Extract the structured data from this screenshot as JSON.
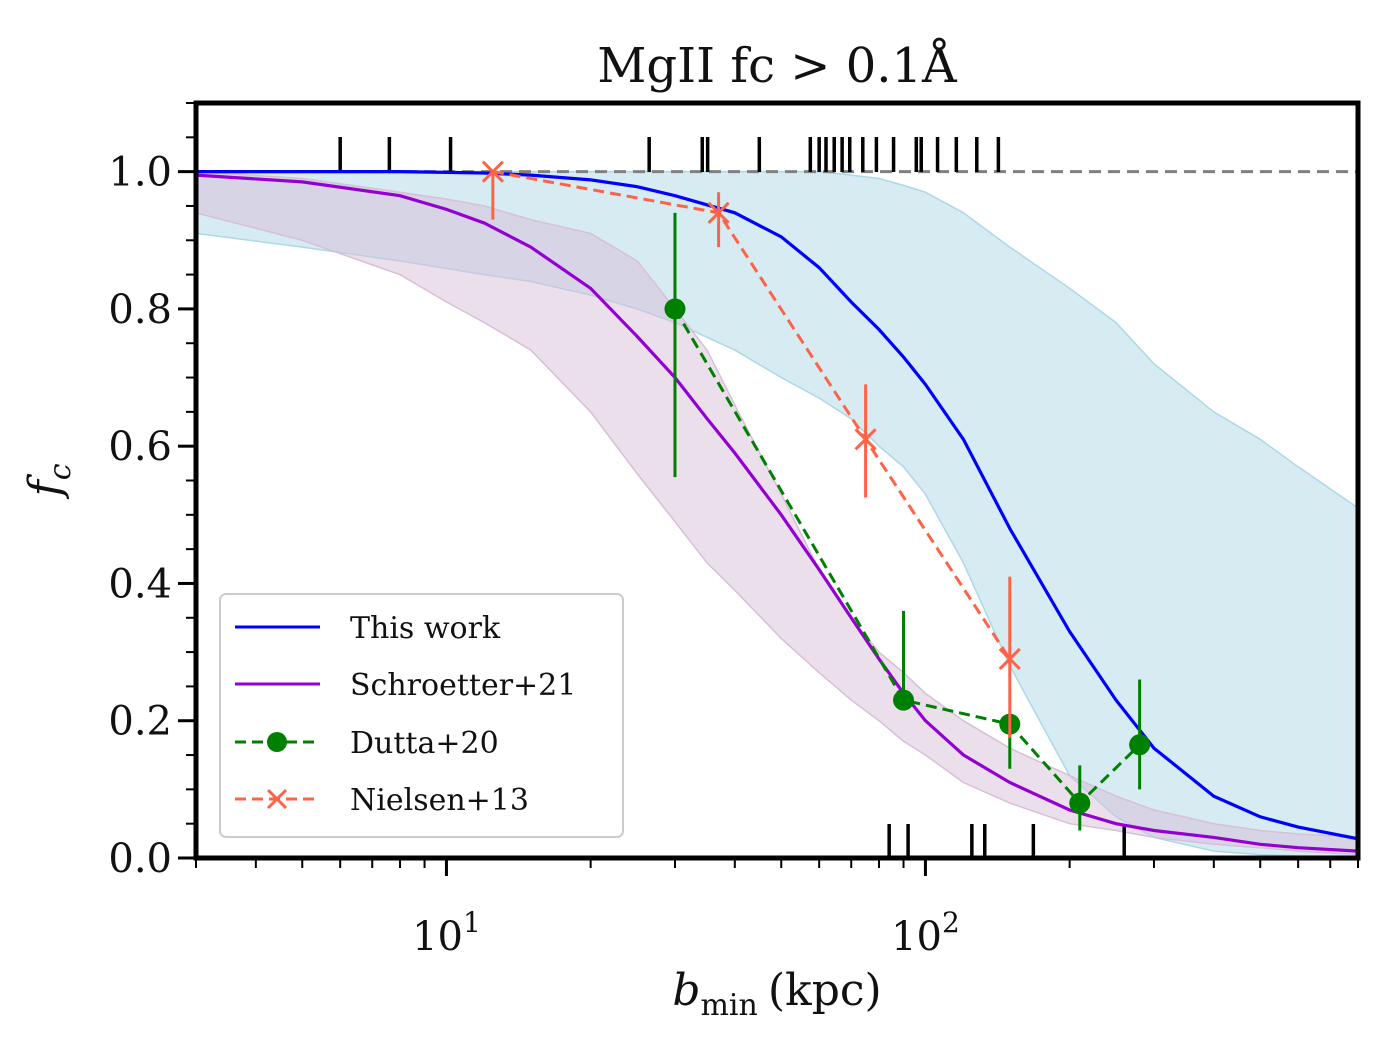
{
  "chart_data": {
    "type": "line",
    "title": "MgII fc > 0.1Å",
    "xlabel_main": "b",
    "xlabel_sub": "min",
    "xlabel_unit": "(kpc)",
    "ylabel_main": "f",
    "ylabel_sub": "c",
    "xscale": "log",
    "xlim": [
      3.0,
      800.0
    ],
    "ylim": [
      0.0,
      1.1
    ],
    "x_tick_labels": [
      {
        "value": 10,
        "base": "10",
        "exp": "1"
      },
      {
        "value": 100,
        "base": "10",
        "exp": "2"
      }
    ],
    "y_ticks": [
      0.0,
      0.2,
      0.4,
      0.6,
      0.8,
      1.0
    ],
    "y_tick_labels": [
      "0.0",
      "0.2",
      "0.4",
      "0.6",
      "0.8",
      "1.0"
    ],
    "reference_line": {
      "y": 1.0,
      "style": "dashed",
      "color": "#808080"
    },
    "legend_placement": "lower-left",
    "series": [
      {
        "name": "This work",
        "kind": "line",
        "color": "#0000ff",
        "x": [
          3,
          5,
          8,
          12,
          15,
          20,
          25,
          30,
          40,
          50,
          60,
          70,
          80,
          90,
          100,
          120,
          150,
          200,
          250,
          300,
          400,
          500,
          600,
          800
        ],
        "y": [
          1.0,
          1.0,
          1.0,
          0.998,
          0.995,
          0.988,
          0.978,
          0.965,
          0.94,
          0.905,
          0.86,
          0.81,
          0.77,
          0.73,
          0.69,
          0.61,
          0.48,
          0.33,
          0.23,
          0.16,
          0.09,
          0.06,
          0.045,
          0.028
        ],
        "band_low": [
          0.91,
          0.89,
          0.87,
          0.85,
          0.84,
          0.82,
          0.8,
          0.78,
          0.74,
          0.7,
          0.67,
          0.64,
          0.6,
          0.57,
          0.53,
          0.43,
          0.28,
          0.12,
          0.06,
          0.03,
          0.01,
          0.005,
          0.003,
          0.002
        ],
        "band_high": [
          1.0,
          1.0,
          1.0,
          1.0,
          1.0,
          1.0,
          1.0,
          1.0,
          1.0,
          1.0,
          1.0,
          0.995,
          0.99,
          0.98,
          0.97,
          0.94,
          0.89,
          0.83,
          0.78,
          0.72,
          0.65,
          0.61,
          0.57,
          0.51
        ],
        "band_color": "#add8e6"
      },
      {
        "name": "Schroetter+21",
        "kind": "line",
        "color": "#9400d3",
        "x": [
          3,
          5,
          8,
          10,
          12,
          15,
          20,
          25,
          30,
          35,
          40,
          50,
          60,
          70,
          80,
          90,
          100,
          120,
          150,
          200,
          250,
          300,
          400,
          500,
          600,
          800
        ],
        "y": [
          0.995,
          0.985,
          0.965,
          0.945,
          0.925,
          0.89,
          0.83,
          0.76,
          0.7,
          0.64,
          0.59,
          0.5,
          0.42,
          0.35,
          0.29,
          0.24,
          0.2,
          0.15,
          0.11,
          0.07,
          0.05,
          0.04,
          0.03,
          0.02,
          0.015,
          0.01
        ],
        "band_low": [
          0.94,
          0.9,
          0.85,
          0.81,
          0.78,
          0.74,
          0.65,
          0.56,
          0.49,
          0.43,
          0.39,
          0.32,
          0.27,
          0.23,
          0.2,
          0.17,
          0.15,
          0.11,
          0.08,
          0.05,
          0.04,
          0.03,
          0.02,
          0.015,
          0.01,
          0.005
        ],
        "band_high": [
          1.0,
          0.99,
          0.97,
          0.96,
          0.95,
          0.93,
          0.91,
          0.87,
          0.8,
          0.74,
          0.66,
          0.53,
          0.42,
          0.35,
          0.3,
          0.27,
          0.24,
          0.2,
          0.16,
          0.12,
          0.09,
          0.07,
          0.05,
          0.04,
          0.035,
          0.03
        ],
        "band_color": "#d8bfd8"
      },
      {
        "name": "Dutta+20",
        "kind": "errorbar",
        "color": "#008000",
        "marker": "circle",
        "linestyle": "dashed",
        "x": [
          30,
          90,
          150,
          210,
          280
        ],
        "y": [
          0.8,
          0.23,
          0.195,
          0.08,
          0.165
        ],
        "yerr_low": [
          0.245,
          0.0,
          0.065,
          0.04,
          0.065
        ],
        "yerr_high": [
          0.14,
          0.13,
          0.0,
          0.055,
          0.095
        ]
      },
      {
        "name": "Nielsen+13",
        "kind": "errorbar",
        "color": "#ff6347",
        "marker": "x",
        "linestyle": "dashed",
        "x": [
          12.5,
          37,
          75,
          150
        ],
        "y": [
          1.0,
          0.94,
          0.61,
          0.29
        ],
        "yerr_low": [
          0.07,
          0.05,
          0.085,
          0.115
        ],
        "yerr_high": [
          0.0,
          0.03,
          0.08,
          0.12
        ]
      }
    ],
    "rug_top_x": [
      6,
      7.6,
      10.2,
      26.5,
      34.2,
      35.1,
      45,
      57.5,
      60,
      62,
      64.5,
      67,
      69.5,
      74,
      79,
      85.8,
      95.7,
      98,
      106,
      116,
      128,
      142
    ],
    "rug_bottom_x": [
      84,
      92,
      125,
      133,
      168,
      260
    ]
  }
}
